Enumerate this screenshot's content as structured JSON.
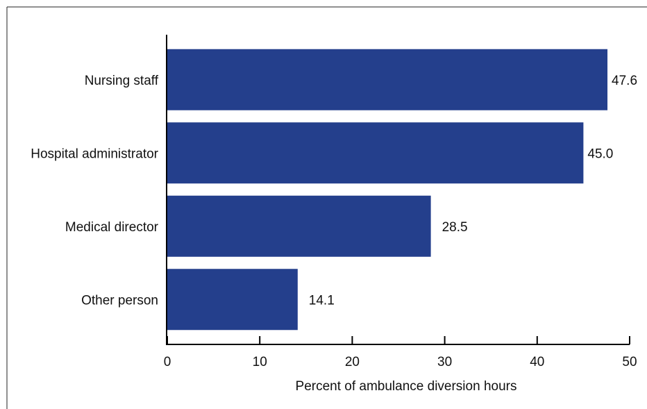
{
  "chart_data": {
    "type": "bar",
    "orientation": "horizontal",
    "categories": [
      "Nursing staff",
      "Hospital administrator",
      "Medical director",
      "Other person"
    ],
    "values": [
      47.6,
      45.0,
      28.5,
      14.1
    ],
    "value_labels": [
      "47.6",
      "45.0",
      "28.5",
      "14.1"
    ],
    "title": "",
    "xlabel": "Percent of ambulance diversion hours",
    "ylabel": "",
    "xlim": [
      0,
      50
    ],
    "xticks": [
      0,
      10,
      20,
      30,
      40,
      50
    ],
    "grid": false,
    "bar_color": "#243f8c"
  }
}
